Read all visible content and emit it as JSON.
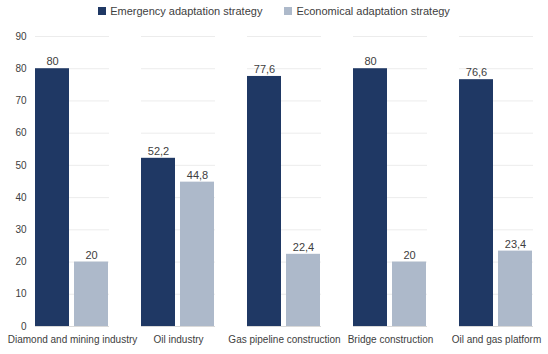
{
  "chart_data": {
    "type": "bar",
    "categories": [
      "Diamond and mining industry",
      "Oil industry",
      "Gas pipeline construction",
      "Bridge construction",
      "Oil and gas platform"
    ],
    "series": [
      {
        "name": "Emergency adaptation strategy",
        "color": "#1f3864",
        "values": [
          80,
          52.2,
          77.6,
          80,
          76.6
        ],
        "value_labels": [
          "80",
          "52,2",
          "77,6",
          "80",
          "76,6"
        ]
      },
      {
        "name": "Economical adaptation strategy",
        "color": "#adb9ca",
        "values": [
          20,
          44.8,
          22.4,
          20,
          23.4
        ],
        "value_labels": [
          "20",
          "44,8",
          "22,4",
          "20",
          "23,4"
        ]
      }
    ],
    "ylim": [
      0,
      90
    ],
    "yticks": [
      0,
      10,
      20,
      30,
      40,
      50,
      60,
      70,
      80,
      90
    ],
    "grid": true,
    "legend": "top",
    "data_labels": true
  }
}
